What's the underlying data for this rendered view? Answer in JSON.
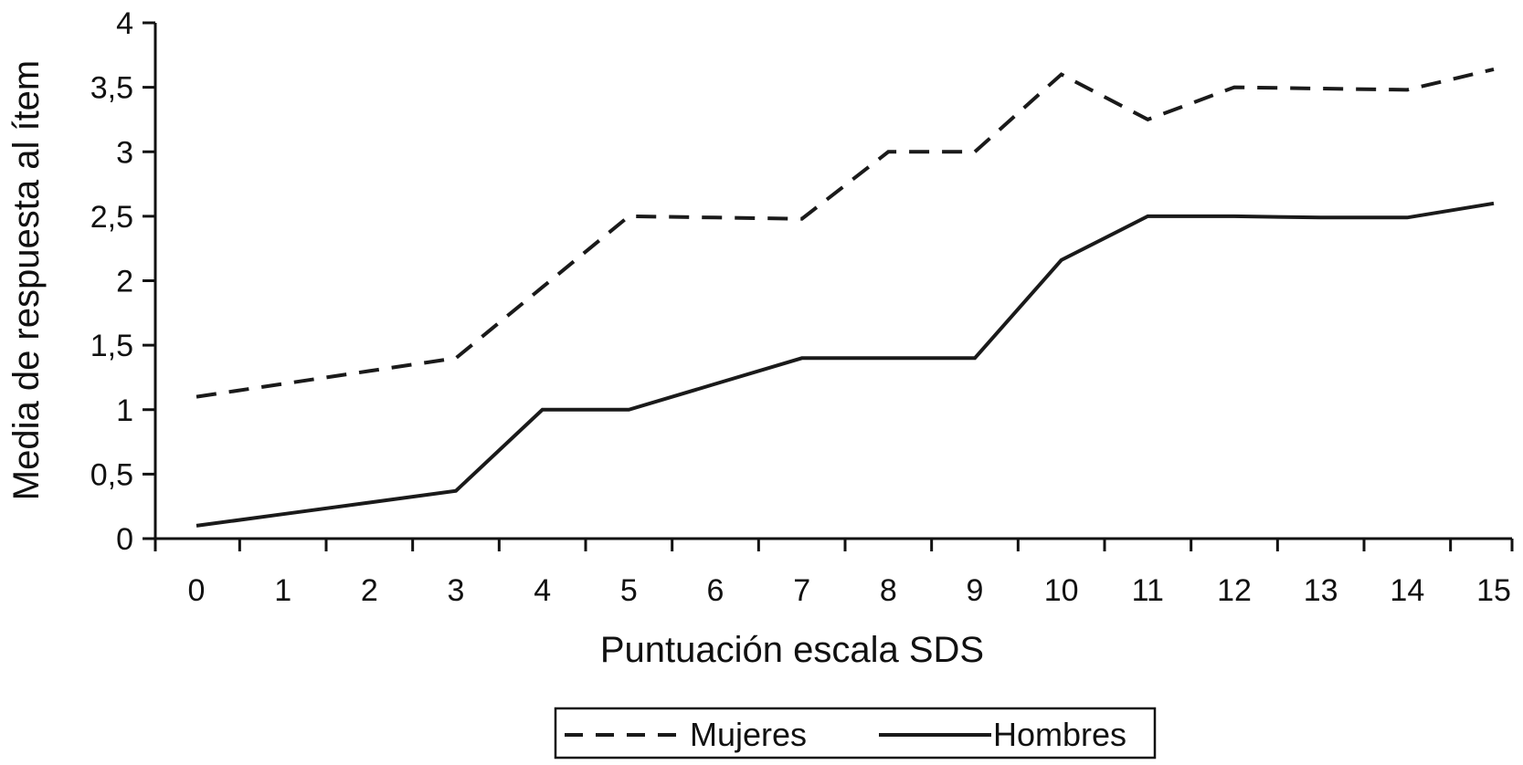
{
  "chart_data": {
    "type": "line",
    "title": "",
    "xlabel": "Puntuación escala SDS",
    "ylabel": "Media de respuesta al ítem",
    "categories": [
      "0",
      "1",
      "2",
      "3",
      "4",
      "5",
      "6",
      "7",
      "8",
      "9",
      "10",
      "11",
      "12",
      "13",
      "14",
      "15"
    ],
    "yticks": [
      "0",
      "0,5",
      "1",
      "1,5",
      "2",
      "2,5",
      "3",
      "3,5",
      "4"
    ],
    "ylim": [
      0,
      4
    ],
    "grid": false,
    "legend_position": "bottom-center",
    "series": [
      {
        "name": "Mujeres",
        "style": "dashed",
        "color": "#1a1a1a",
        "values": [
          1.1,
          1.2,
          1.3,
          1.4,
          1.95,
          2.5,
          2.49,
          2.48,
          3.0,
          3.0,
          3.6,
          3.25,
          3.5,
          3.49,
          3.48,
          3.64
        ]
      },
      {
        "name": "Hombres",
        "style": "solid",
        "color": "#1a1a1a",
        "values": [
          0.1,
          0.19,
          0.28,
          0.37,
          1.0,
          1.0,
          1.2,
          1.4,
          1.4,
          1.4,
          2.16,
          2.5,
          2.5,
          2.49,
          2.49,
          2.6
        ]
      }
    ]
  }
}
